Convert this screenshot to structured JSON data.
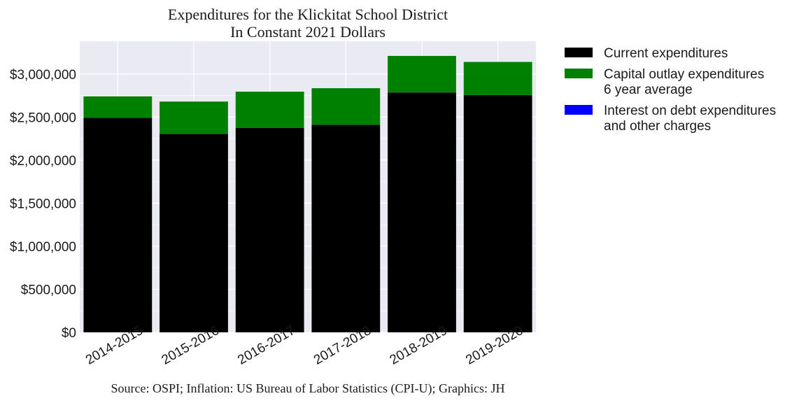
{
  "chart_data": {
    "type": "bar",
    "stacked": true,
    "title": "Expenditures for the Klickitat School District",
    "subtitle": "In Constant 2021 Dollars",
    "source": "Source: OSPI; Inflation: US Bureau of Labor Statistics (CPI-U); Graphics: JH",
    "categories": [
      "2014-2015",
      "2015-2016",
      "2016-2017",
      "2017-2018",
      "2018-2019",
      "2019-2020"
    ],
    "series": [
      {
        "legend_lines": [
          "Current expenditures"
        ],
        "color": "#000000",
        "values": [
          2490000,
          2305000,
          2375000,
          2410000,
          2785000,
          2755000
        ]
      },
      {
        "legend_lines": [
          "Capital outlay expenditures",
          "6 year average"
        ],
        "color": "#008000",
        "values": [
          250000,
          375000,
          420000,
          425000,
          425000,
          385000
        ]
      },
      {
        "legend_lines": [
          "Interest on debt expenditures",
          "and other charges"
        ],
        "color": "#0000ff",
        "values": [
          0,
          0,
          0,
          0,
          0,
          0
        ]
      }
    ],
    "yticks": [
      0,
      500000,
      1000000,
      1500000,
      2000000,
      2500000,
      3000000
    ],
    "ytick_labels": [
      "$0",
      "$500,000",
      "$1,000,000",
      "$1,500,000",
      "$2,000,000",
      "$2,500,000",
      "$3,000,000"
    ],
    "ylim": [
      0,
      3380000
    ],
    "grid": true,
    "legend_position": "outside-right",
    "background_color": "#eaeaf2"
  }
}
